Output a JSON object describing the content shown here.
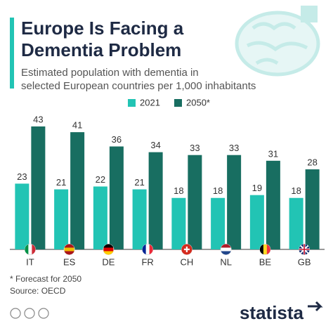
{
  "chart_data": {
    "type": "bar",
    "title_lines": [
      "Europe Is Facing a",
      "Dementia Problem"
    ],
    "subtitle_lines": [
      "Estimated population with dementia in",
      "selected European countries per 1,000 inhabitants"
    ],
    "categories": [
      "IT",
      "ES",
      "DE",
      "FR",
      "CH",
      "NL",
      "BE",
      "GB"
    ],
    "series": [
      {
        "name": "2021",
        "color": "#22c4b4",
        "values": [
          23,
          21,
          22,
          21,
          18,
          18,
          19,
          18
        ]
      },
      {
        "name": "2050*",
        "color": "#186e61",
        "values": [
          43,
          41,
          36,
          34,
          33,
          33,
          31,
          28
        ]
      }
    ],
    "footnote": "* Forecast for 2050",
    "source": "Source: OECD",
    "brand": "statista"
  }
}
